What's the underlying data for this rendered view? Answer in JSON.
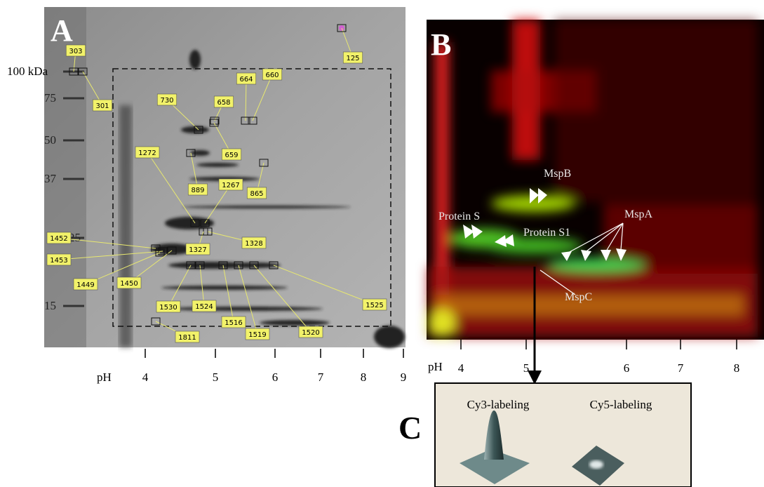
{
  "panel_a": {
    "label": "A",
    "mw_labels": [
      "100 kDa",
      "75",
      "50",
      "37",
      "25",
      "15"
    ],
    "ph_label": "pH",
    "ph_ticks": [
      "4",
      "5",
      "6",
      "7",
      "8",
      "9"
    ],
    "spot_labels": [
      "303",
      "125",
      "301",
      "730",
      "658",
      "664",
      "660",
      "659",
      "1272",
      "865",
      "889",
      "1267",
      "1328",
      "1452",
      "1327",
      "1453",
      "1449",
      "1450",
      "1530",
      "1524",
      "1516",
      "1519",
      "1520",
      "1525",
      "1811"
    ]
  },
  "panel_b": {
    "label": "B",
    "ph_label": "pH",
    "ph_ticks": [
      "4",
      "5",
      "6",
      "7",
      "8"
    ],
    "annotations": [
      "MspB",
      "Protein S",
      "Protein S1",
      "MspA",
      "MspC"
    ]
  },
  "panel_c": {
    "label": "C",
    "titles": [
      "Cy3-labeling",
      "Cy5-labeling"
    ]
  }
}
